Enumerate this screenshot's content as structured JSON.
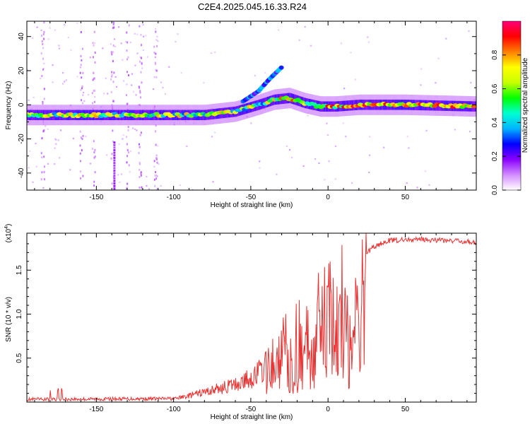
{
  "title": "C2E4.2025.045.16.33.R24",
  "colors": {
    "snr_line": "#e83232",
    "colormap": [
      "#ffffff",
      "#d28cff",
      "#8a00ff",
      "#0000ff",
      "#00b4ff",
      "#00ffd0",
      "#00ff00",
      "#c8ff00",
      "#ffff00",
      "#ff8000",
      "#ff0000",
      "#ff0078"
    ]
  },
  "chart_data": [
    {
      "type": "heatmap",
      "name": "spectrogram",
      "xlabel": "Height of straight line (km)",
      "ylabel": "Frequency (Hz)",
      "xlim": [
        -195,
        96
      ],
      "ylim": [
        -50,
        49
      ],
      "xticks": [
        -150,
        -100,
        -50,
        0,
        50
      ],
      "yticks": [
        -40,
        -20,
        0,
        20,
        40
      ],
      "colorbar": {
        "label": "Normalized spectral amplitude",
        "range": [
          0.0,
          1.0
        ],
        "ticks": [
          0.0,
          0.2,
          0.4,
          0.6,
          0.8
        ]
      },
      "ridge_track_hz": {
        "x": [
          -195,
          -150,
          -100,
          -80,
          -60,
          -45,
          -35,
          -25,
          -15,
          -5,
          5,
          20,
          50,
          96
        ],
        "y": [
          -6,
          -6,
          -6,
          -6,
          -4,
          0,
          3,
          4,
          1,
          -1,
          -1,
          0,
          0,
          -1
        ]
      },
      "upper_branch_hz": {
        "x": [
          -55,
          -45,
          -38,
          -30
        ],
        "y": [
          2,
          8,
          15,
          22
        ]
      }
    },
    {
      "type": "line",
      "name": "snr",
      "xlabel": "Height of straight line (km)",
      "ylabel": "SNR (10 * v/v)",
      "yunit_label": "(x10",
      "yunit_exp": "4",
      "yunit_close": ")",
      "xlim": [
        -195,
        96
      ],
      "ylim": [
        0,
        1.92
      ],
      "xticks": [
        -150,
        -100,
        -50,
        0,
        50
      ],
      "yticks": [
        0.5,
        1.0,
        1.5
      ],
      "ytick_labels": [
        "0.5",
        "1.0",
        "1.5"
      ],
      "envelope": {
        "x": [
          -195,
          -100,
          -90,
          -75,
          -60,
          -50,
          -40,
          -35,
          -30,
          -25,
          -20,
          -15,
          -10,
          -5,
          0,
          5,
          10,
          15,
          20,
          25,
          30,
          40,
          60,
          96
        ],
        "y": [
          0.03,
          0.04,
          0.08,
          0.15,
          0.22,
          0.3,
          0.45,
          0.6,
          0.75,
          0.85,
          0.9,
          1.0,
          1.1,
          1.2,
          1.25,
          1.35,
          1.45,
          1.55,
          1.65,
          1.72,
          1.8,
          1.87,
          1.88,
          1.85
        ]
      }
    }
  ]
}
